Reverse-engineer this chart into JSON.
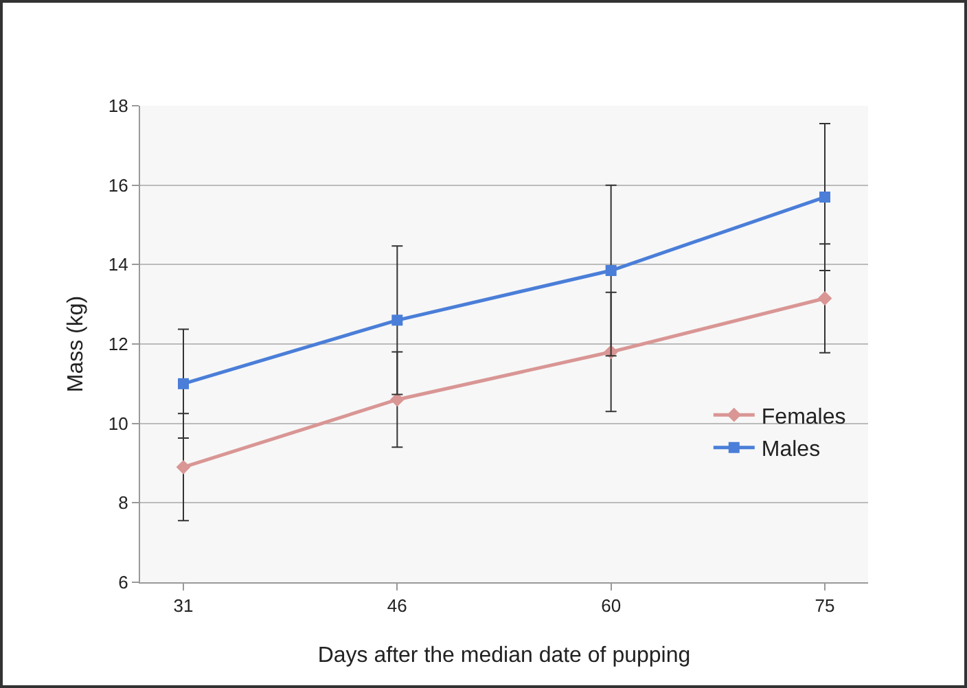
{
  "chart_data": {
    "type": "line",
    "xlabel": "Days after the median date of pupping",
    "ylabel": "Mass (kg)",
    "categories": [
      "31",
      "46",
      "60",
      "75"
    ],
    "series": [
      {
        "name": "Females",
        "color": "#d99694",
        "marker": "diamond",
        "values": [
          8.9,
          10.6,
          11.8,
          13.15
        ],
        "errors": [
          1.35,
          1.2,
          1.5,
          1.37
        ]
      },
      {
        "name": "Males",
        "color": "#4a7ed8",
        "marker": "square",
        "values": [
          11.0,
          12.6,
          13.85,
          15.7
        ],
        "errors": [
          1.37,
          1.87,
          2.15,
          1.85
        ]
      }
    ],
    "ylim": [
      6,
      18
    ],
    "yticks": [
      6,
      8,
      10,
      12,
      14,
      16,
      18
    ],
    "grid": "y",
    "legend": "right",
    "line_style": "solid"
  }
}
